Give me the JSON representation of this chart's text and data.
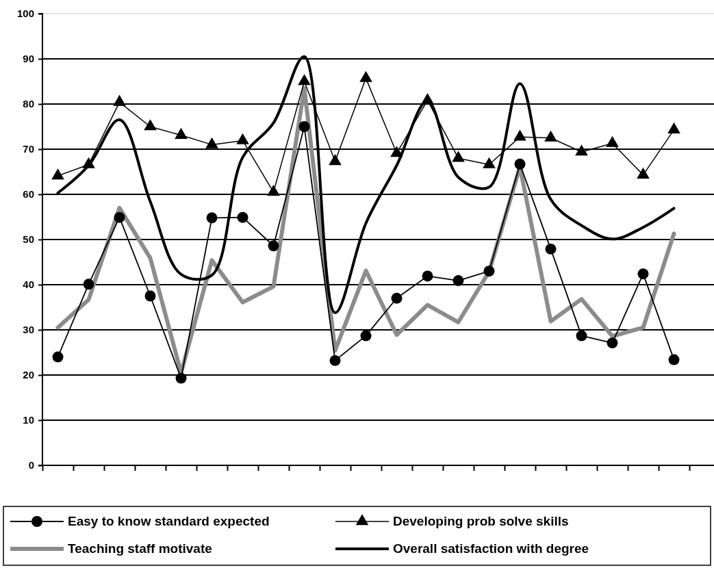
{
  "chart_data": {
    "type": "line",
    "categories": [
      null,
      null,
      null,
      null,
      null,
      null,
      null,
      null,
      null,
      null,
      null,
      null,
      null,
      null,
      null,
      null,
      null,
      null,
      null,
      null,
      null
    ],
    "ylim": [
      0,
      100
    ],
    "yticks": [
      0,
      10,
      20,
      30,
      40,
      50,
      60,
      70,
      80,
      90,
      100
    ],
    "grid": "y",
    "legend": "bottom",
    "tick_labels": "y",
    "series": [
      {
        "name": "Easy to know standard expected",
        "color": "#000000",
        "marker": "circle",
        "values": [
          24,
          40.1,
          54.9,
          37.5,
          19.3,
          54.8,
          54.9,
          48.6,
          75,
          23.2,
          28.7,
          37,
          41.9,
          40.9,
          43,
          66.7,
          47.9,
          28.7,
          27.1,
          42.4,
          23.4
        ]
      },
      {
        "name": "Developing prob solve skills",
        "color": "#000000",
        "marker": "triangle",
        "values": [
          64.1,
          66.6,
          80.4,
          75,
          73.1,
          71,
          71.9,
          60.5,
          85,
          67.3,
          85.7,
          69.1,
          80.8,
          68,
          66.6,
          72.7,
          72.5,
          69.4,
          71.3,
          64.3,
          74.3
        ]
      },
      {
        "name": "Teaching staff motivate",
        "color": "#8c8c8c",
        "marker": "none",
        "values": [
          30.5,
          36.7,
          57,
          45.9,
          20.5,
          45.4,
          36.1,
          39.6,
          83.5,
          25.4,
          43.1,
          28.9,
          35.5,
          31.7,
          42.9,
          66.1,
          31.9,
          36.8,
          28.6,
          30.5,
          51.3
        ]
      },
      {
        "name": "Overall satisfaction with degree",
        "color": "#000000",
        "marker": "none",
        "values": [
          60.3,
          66.4,
          76.5,
          58.4,
          42.3,
          42.1,
          68.2,
          75.8,
          90.5,
          33.8,
          53.6,
          66.4,
          80.6,
          63.8,
          61.6,
          84.5,
          58.9,
          53.1,
          50.1,
          52.7,
          56.9
        ]
      }
    ]
  }
}
